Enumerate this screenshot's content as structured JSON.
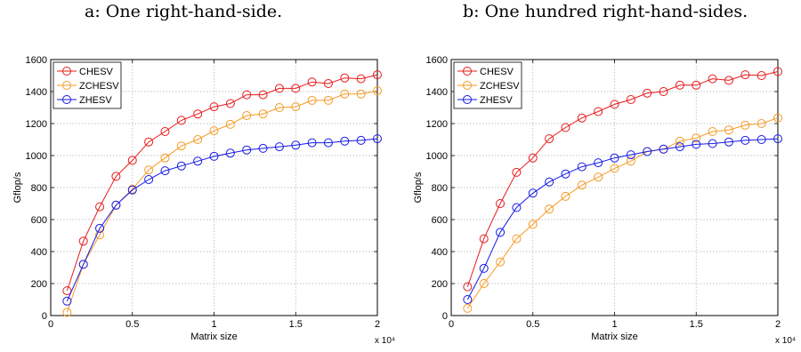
{
  "captions": {
    "a": "a: One right-hand-side.",
    "b": "b: One hundred right-hand-sides."
  },
  "colors": {
    "CHESV": "#e8191a",
    "ZCHESV": "#f59a23",
    "ZHESV": "#1419e6"
  },
  "chart_data": [
    {
      "type": "line",
      "xlabel": "Matrix size",
      "ylabel": "Gflop/s",
      "x_multiplier": "x 10⁴",
      "x": [
        0.1,
        0.2,
        0.3,
        0.4,
        0.5,
        0.6,
        0.7,
        0.8,
        0.9,
        1.0,
        1.1,
        1.2,
        1.3,
        1.4,
        1.5,
        1.6,
        1.7,
        1.8,
        1.9,
        2.0
      ],
      "xlim": [
        0,
        2
      ],
      "ylim": [
        0,
        1600
      ],
      "xticks": [
        "0",
        "0.5",
        "1",
        "1.5",
        "2"
      ],
      "yticks": [
        "0",
        "200",
        "400",
        "600",
        "800",
        "1000",
        "1200",
        "1400",
        "1600"
      ],
      "grid": true,
      "legend_position": "top-left",
      "series": [
        {
          "name": "CHESV",
          "values": [
            155,
            465,
            680,
            870,
            970,
            1085,
            1150,
            1220,
            1260,
            1305,
            1325,
            1380,
            1380,
            1420,
            1420,
            1460,
            1450,
            1485,
            1480,
            1505
          ]
        },
        {
          "name": "ZCHESV",
          "values": [
            20,
            320,
            505,
            690,
            790,
            910,
            985,
            1060,
            1100,
            1155,
            1195,
            1250,
            1260,
            1300,
            1305,
            1345,
            1345,
            1385,
            1385,
            1405
          ]
        },
        {
          "name": "ZHESV",
          "values": [
            90,
            320,
            545,
            690,
            785,
            850,
            905,
            935,
            965,
            995,
            1015,
            1035,
            1045,
            1055,
            1065,
            1080,
            1080,
            1090,
            1095,
            1105
          ]
        }
      ]
    },
    {
      "type": "line",
      "xlabel": "Matrix size",
      "ylabel": "Gflop/s",
      "x_multiplier": "x 10⁴",
      "x": [
        0.1,
        0.2,
        0.3,
        0.4,
        0.5,
        0.6,
        0.7,
        0.8,
        0.9,
        1.0,
        1.1,
        1.2,
        1.3,
        1.4,
        1.5,
        1.6,
        1.7,
        1.8,
        1.9,
        2.0
      ],
      "xlim": [
        0,
        2
      ],
      "ylim": [
        0,
        1600
      ],
      "xticks": [
        "0",
        "0.5",
        "1",
        "1.5",
        "2"
      ],
      "yticks": [
        "0",
        "200",
        "400",
        "600",
        "800",
        "1000",
        "1200",
        "1400",
        "1600"
      ],
      "grid": true,
      "legend_position": "top-left",
      "series": [
        {
          "name": "CHESV",
          "values": [
            180,
            480,
            700,
            895,
            985,
            1105,
            1175,
            1235,
            1275,
            1320,
            1350,
            1390,
            1400,
            1440,
            1440,
            1480,
            1470,
            1505,
            1500,
            1525
          ]
        },
        {
          "name": "ZCHESV",
          "values": [
            45,
            200,
            335,
            480,
            570,
            665,
            745,
            815,
            865,
            920,
            965,
            1025,
            1040,
            1090,
            1110,
            1150,
            1160,
            1190,
            1200,
            1235
          ]
        },
        {
          "name": "ZHESV",
          "values": [
            100,
            295,
            520,
            675,
            765,
            835,
            885,
            930,
            955,
            985,
            1005,
            1025,
            1040,
            1055,
            1070,
            1075,
            1085,
            1095,
            1100,
            1105
          ]
        }
      ]
    }
  ]
}
